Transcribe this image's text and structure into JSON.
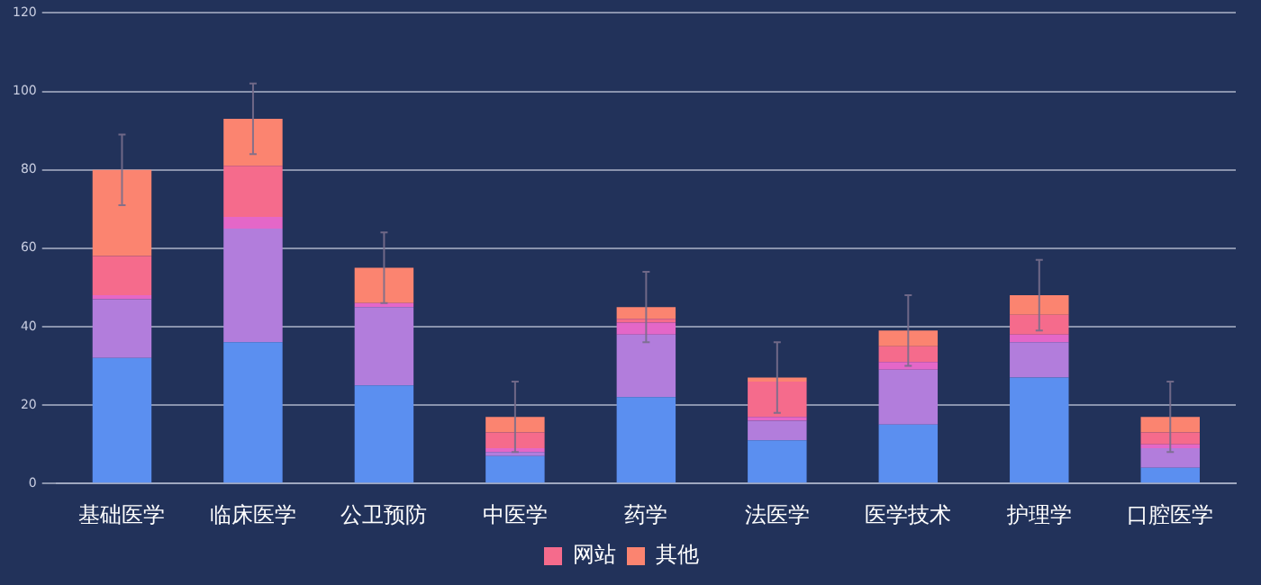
{
  "chart_data": {
    "type": "bar",
    "stacked": true,
    "categories": [
      "基础医学",
      "临床医学",
      "公卫预防",
      "中医学",
      "药学",
      "法医学",
      "医学技术",
      "护理学",
      "口腔医学"
    ],
    "series": [
      {
        "color": "#5b8ff0",
        "values": [
          32,
          36,
          25,
          7,
          22,
          11,
          15,
          27,
          4
        ]
      },
      {
        "color": "#b27ddc",
        "values": [
          15,
          29,
          20,
          1,
          16,
          5,
          14,
          9,
          5
        ]
      },
      {
        "color": "#e467c8",
        "values": [
          1,
          3,
          1,
          1,
          3,
          1,
          2,
          2,
          1
        ]
      },
      {
        "name": "网站",
        "color": "#f56b8c",
        "values": [
          10,
          13,
          0,
          4,
          1,
          9,
          4,
          5,
          3
        ]
      },
      {
        "name": "其他",
        "color": "#fb8470",
        "values": [
          22,
          12,
          9,
          4,
          3,
          1,
          4,
          5,
          4
        ],
        "errors": [
          9,
          9,
          9,
          9,
          9,
          9,
          9,
          9,
          9
        ]
      }
    ],
    "ylim": [
      0,
      120
    ],
    "yticks": [
      0,
      20,
      40,
      60,
      80,
      100,
      120
    ],
    "grid": "y",
    "legend": "bottom"
  }
}
